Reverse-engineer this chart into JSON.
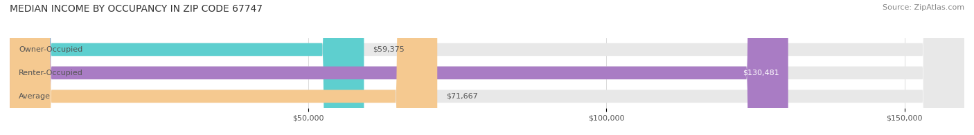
{
  "title": "MEDIAN INCOME BY OCCUPANCY IN ZIP CODE 67747",
  "source": "Source: ZipAtlas.com",
  "categories": [
    "Owner-Occupied",
    "Renter-Occupied",
    "Average"
  ],
  "values": [
    59375,
    130481,
    71667
  ],
  "bar_colors": [
    "#5ECFCF",
    "#A97CC4",
    "#F5C990"
  ],
  "bg_bar_color": "#E8E8E8",
  "value_labels": [
    "$59,375",
    "$130,481",
    "$71,667"
  ],
  "xmax": 160000,
  "xticks": [
    50000,
    100000,
    150000
  ],
  "xtick_labels": [
    "$50,000",
    "$100,000",
    "$150,000"
  ],
  "bar_height": 0.55,
  "bg_color": "#FFFFFF",
  "label_font_color": "#555555",
  "value_in_bar_color": "#FFFFFF",
  "value_outside_color": "#555555",
  "title_fontsize": 10,
  "source_fontsize": 8,
  "tick_fontsize": 8,
  "cat_fontsize": 8
}
